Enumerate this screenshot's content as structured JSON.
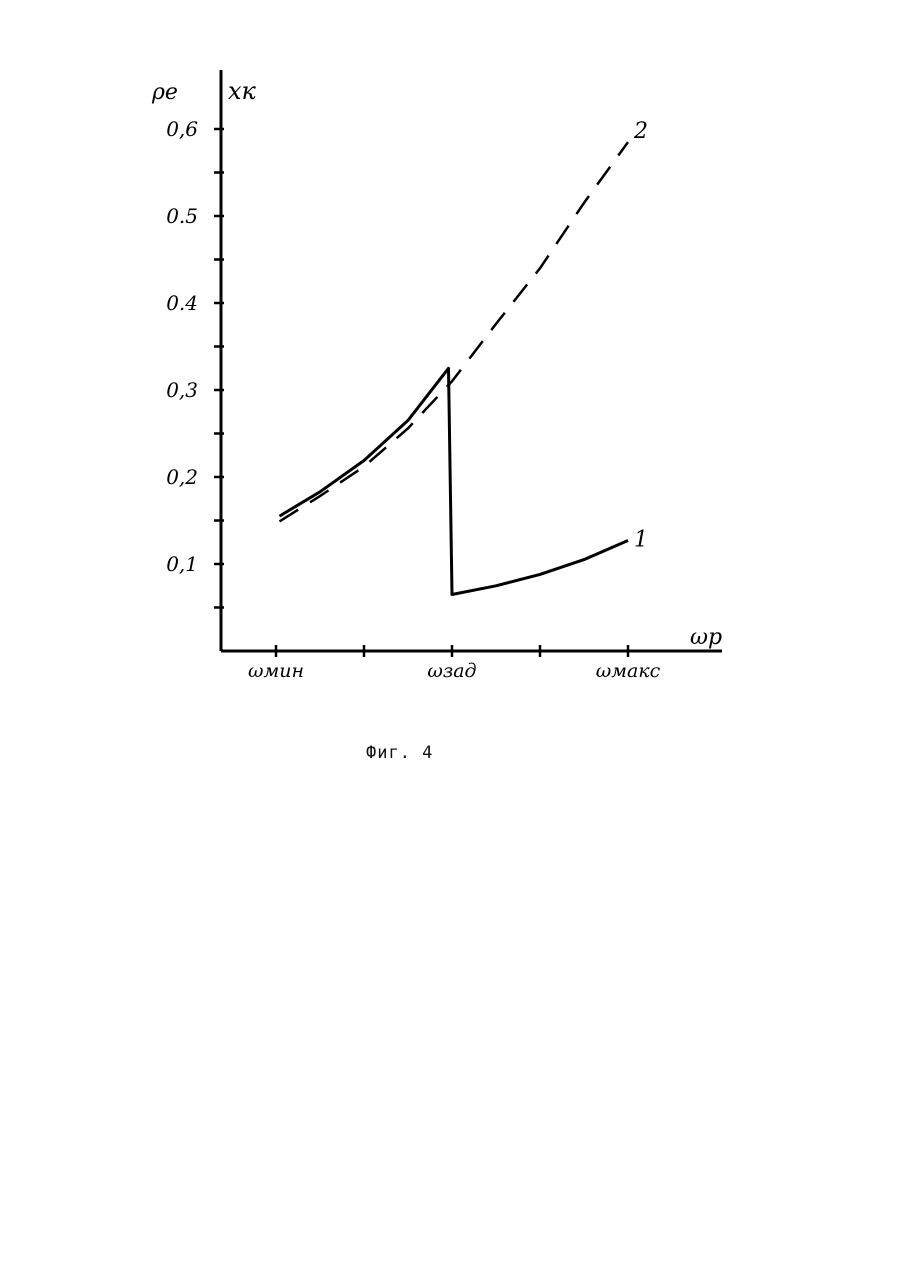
{
  "caption": "Фиг. 4",
  "chart_data": {
    "type": "line",
    "title": "",
    "ylabel_left": "ρe",
    "ylabel_right": "xк",
    "xlabel": "ωр",
    "ylim": [
      0,
      0.6
    ],
    "y_ticks": [
      {
        "value": 0.1,
        "label": "0,1"
      },
      {
        "value": 0.2,
        "label": "0,2"
      },
      {
        "value": 0.3,
        "label": "0,3"
      },
      {
        "value": 0.4,
        "label": "0.4"
      },
      {
        "value": 0.5,
        "label": "0.5"
      },
      {
        "value": 0.6,
        "label": "0,6"
      }
    ],
    "y_minor_ticks": [
      0.05,
      0.15,
      0.25,
      0.35,
      0.45,
      0.55
    ],
    "x_ticks": [
      {
        "value": 0,
        "label": "ωмин"
      },
      {
        "value": 0.5,
        "label": ""
      },
      {
        "value": 1,
        "label": "ωзад"
      },
      {
        "value": 1.5,
        "label": ""
      },
      {
        "value": 2,
        "label": "ωмакс"
      }
    ],
    "xlim": [
      -0.33,
      2.6
    ],
    "grid": false,
    "series": [
      {
        "name": "1",
        "style": "solid",
        "points": [
          [
            0.02,
            0.155
          ],
          [
            0.25,
            0.183
          ],
          [
            0.5,
            0.219
          ],
          [
            0.75,
            0.265
          ],
          [
            0.98,
            0.325
          ],
          [
            1.0,
            0.065
          ],
          [
            1.25,
            0.075
          ],
          [
            1.5,
            0.088
          ],
          [
            1.75,
            0.105
          ],
          [
            2.0,
            0.127
          ]
        ]
      },
      {
        "name": "2",
        "style": "dashed",
        "points": [
          [
            0.02,
            0.149
          ],
          [
            0.25,
            0.178
          ],
          [
            0.5,
            0.212
          ],
          [
            0.75,
            0.256
          ],
          [
            1.0,
            0.31
          ],
          [
            1.25,
            0.376
          ],
          [
            1.5,
            0.44
          ],
          [
            1.75,
            0.515
          ],
          [
            2.0,
            0.585
          ]
        ]
      }
    ]
  }
}
